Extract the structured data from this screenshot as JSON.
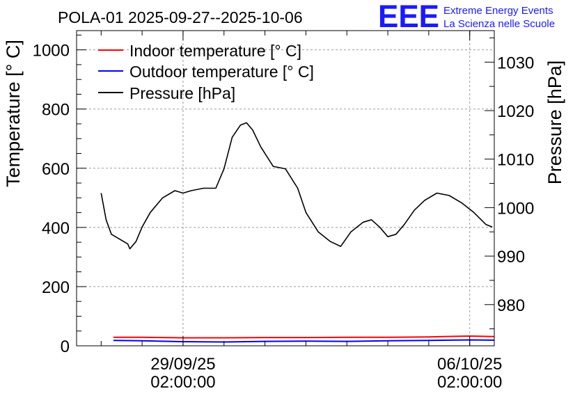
{
  "header": {
    "title": "POLA-01 2025-09-27--2025-10-06",
    "logo_text": "EEE",
    "logo_line1": "Extreme Energy Events",
    "logo_line2": "La Scienza nelle Scuole"
  },
  "colors": {
    "indoor": "#ff0000",
    "outdoor": "#0000ff",
    "pressure": "#000000",
    "logo": "#1a1aff",
    "grid": "#9a9a9a"
  },
  "chart_data": {
    "type": "line",
    "title": "POLA-01 2025-09-27--2025-10-06",
    "xlabel": "",
    "ylabel": "Temperature [° C]",
    "y2label": "Pressure [hPa]",
    "x_unit": "days since 2025-09-27 02:00",
    "xlim": [
      -0.6,
      9.6
    ],
    "ylim": [
      0,
      1065
    ],
    "y2lim": [
      971.5,
      1036.5
    ],
    "grid": true,
    "legend_position": "top-left",
    "yticks": [
      0,
      200,
      400,
      600,
      800,
      1000
    ],
    "y2ticks": [
      980,
      990,
      1000,
      1010,
      1020,
      1030
    ],
    "xticks": [
      {
        "x": 2,
        "date": "29/09/25",
        "time": "02:00:00"
      },
      {
        "x": 9,
        "date": "06/10/25",
        "time": "02:00:00"
      }
    ],
    "series": [
      {
        "name": "Indoor temperature [° C]",
        "axis": "left",
        "color": "#ff0000",
        "x": [
          0.3,
          1.0,
          2.0,
          3.0,
          4.0,
          5.0,
          6.0,
          7.0,
          8.0,
          9.0,
          9.6
        ],
        "y": [
          29,
          29,
          27,
          27,
          28,
          28,
          29,
          29,
          30,
          33,
          31
        ]
      },
      {
        "name": "Outdoor temperature [° C]",
        "axis": "left",
        "color": "#0000ff",
        "x": [
          0.3,
          1.0,
          2.0,
          3.0,
          4.0,
          5.0,
          6.0,
          7.0,
          8.0,
          9.0,
          9.6
        ],
        "y": [
          18,
          17,
          14,
          13,
          15,
          16,
          15,
          17,
          18,
          20,
          19
        ]
      },
      {
        "name": "Pressure [hPa]",
        "axis": "right",
        "color": "#000000",
        "x": [
          0.0,
          0.12,
          0.25,
          0.45,
          0.65,
          0.7,
          0.85,
          1.0,
          1.2,
          1.5,
          1.8,
          2.0,
          2.2,
          2.5,
          2.8,
          3.0,
          3.2,
          3.4,
          3.55,
          3.7,
          3.9,
          4.2,
          4.5,
          4.8,
          5.0,
          5.3,
          5.6,
          5.85,
          6.1,
          6.4,
          6.6,
          6.8,
          7.0,
          7.2,
          7.4,
          7.65,
          7.9,
          8.2,
          8.5,
          8.8,
          9.1,
          9.4,
          9.55
        ],
        "y": [
          1003.0,
          997.5,
          994.5,
          993.5,
          992.5,
          991.5,
          993.0,
          996.0,
          999.0,
          1002.0,
          1003.5,
          1003.0,
          1003.5,
          1004.0,
          1004.0,
          1008.0,
          1014.5,
          1017.0,
          1017.5,
          1016.0,
          1012.5,
          1008.5,
          1008.0,
          1004.0,
          999.0,
          995.0,
          993.0,
          992.0,
          995.0,
          997.0,
          997.5,
          996.0,
          994.0,
          994.5,
          996.5,
          999.5,
          1001.5,
          1003.0,
          1002.5,
          1001.0,
          999.0,
          996.5,
          996.0
        ]
      }
    ]
  }
}
